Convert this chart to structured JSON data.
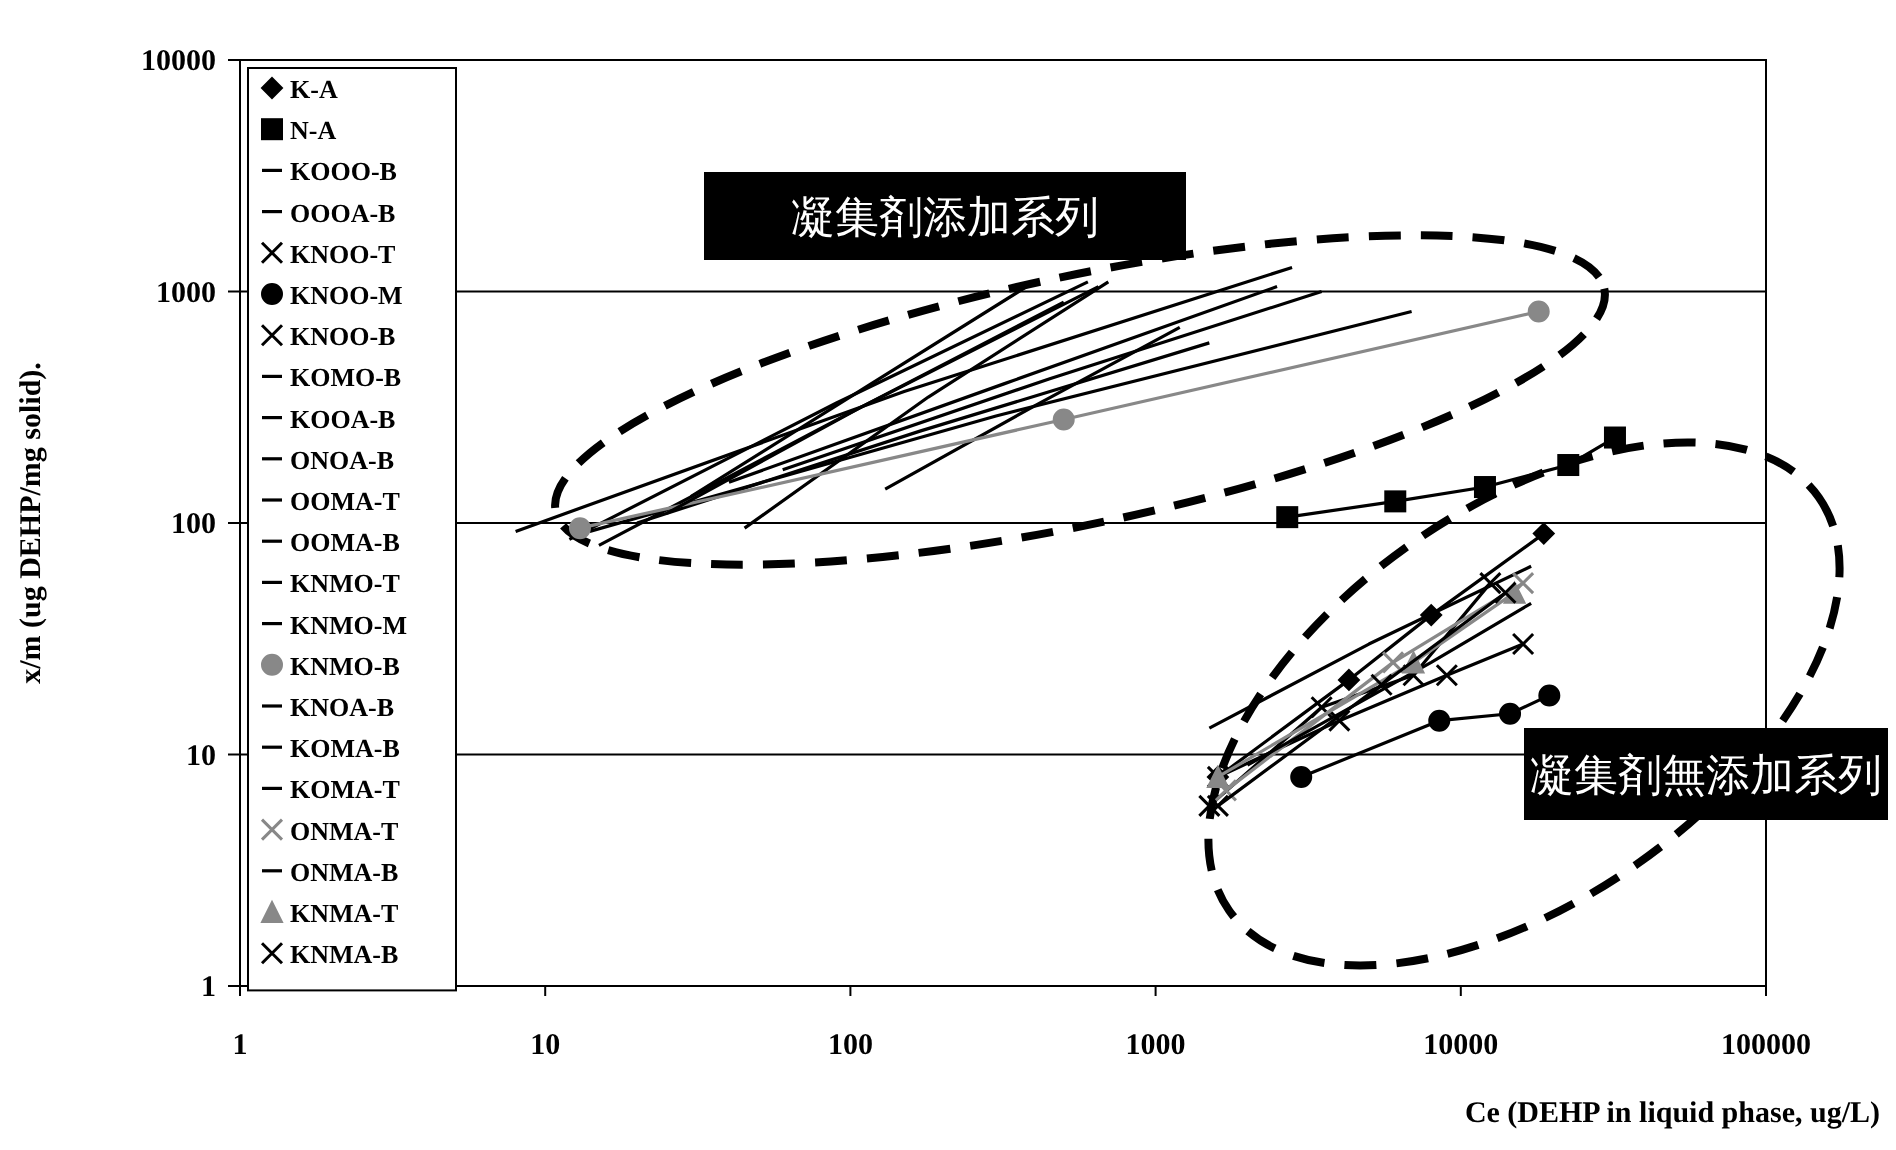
{
  "chart_data": {
    "type": "line",
    "xlabel": "Ce (DEHP in liquid phase, ug/L)",
    "ylabel": "x/m (ug DEHP/mg solid).",
    "log": "xy",
    "xlim": [
      1,
      100000
    ],
    "ylim": [
      1,
      10000
    ],
    "xticks": [
      1,
      10,
      100,
      1000,
      10000,
      100000
    ],
    "yticks": [
      1,
      10,
      100,
      1000,
      10000
    ],
    "grid": "y",
    "legend": "top left",
    "annotations": [
      "凝集剤添加系列",
      "凝集剤無添加系列"
    ],
    "series": [
      {
        "name": "K-A",
        "color": "#000000",
        "marker": "diamond",
        "x": [
          1600,
          4300,
          8000,
          18700
        ],
        "values": [
          8,
          21,
          40,
          90
        ]
      },
      {
        "name": "N-A",
        "color": "#000000",
        "marker": "square",
        "x": [
          2700,
          6100,
          12000,
          22500,
          32000
        ],
        "values": [
          106,
          124,
          143,
          178,
          234
        ]
      },
      {
        "name": "KOOO-B",
        "color": "#000000",
        "marker": "none",
        "x": [
          8,
          150,
          2800
        ],
        "values": [
          92,
          370,
          1270
        ]
      },
      {
        "name": "OOOA-B",
        "color": "#000000",
        "marker": "none",
        "x": [
          14,
          300,
          6900
        ],
        "values": [
          92,
          290,
          820
        ]
      },
      {
        "name": "KNOO-T",
        "color": "#000000",
        "marker": "cross",
        "x": [
          1500,
          3500,
          7000,
          12500
        ],
        "values": [
          6,
          16,
          22,
          55
        ]
      },
      {
        "name": "KNOO-M",
        "color": "#000000",
        "marker": "circle",
        "x": [
          3000,
          8500,
          14500,
          19500
        ],
        "values": [
          8,
          14,
          15,
          18
        ]
      },
      {
        "name": "KNOO-B",
        "color": "#000000",
        "marker": "cross",
        "x": [
          1600,
          4000,
          9000,
          16000
        ],
        "values": [
          8,
          14,
          22,
          30
        ]
      },
      {
        "name": "KOMO-B",
        "color": "#000000",
        "marker": "none",
        "x": [
          12,
          90,
          600
        ],
        "values": [
          85,
          330,
          1100
        ]
      },
      {
        "name": "KOOA-B",
        "color": "#000000",
        "marker": "none",
        "x": [
          15,
          100,
          650
        ],
        "values": [
          80,
          300,
          1050
        ]
      },
      {
        "name": "ONOA-B",
        "color": "#000000",
        "marker": "none",
        "x": [
          45,
          180,
          700
        ],
        "values": [
          95,
          350,
          1100
        ]
      },
      {
        "name": "OOMA-T",
        "color": "#000000",
        "marker": "none",
        "x": [
          130,
          400,
          1200
        ],
        "values": [
          140,
          320,
          700
        ]
      },
      {
        "name": "OOMA-B",
        "color": "#000000",
        "marker": "none",
        "x": [
          40,
          320,
          2500
        ],
        "values": [
          150,
          400,
          1050
        ]
      },
      {
        "name": "KNMO-T",
        "color": "#000000",
        "marker": "none",
        "x": [
          20,
          170,
          1500
        ],
        "values": [
          100,
          250,
          600
        ]
      },
      {
        "name": "KNMO-M",
        "color": "#000000",
        "marker": "none",
        "x": [
          30,
          110,
          400
        ],
        "values": [
          130,
          380,
          1100
        ]
      },
      {
        "name": "KNMO-B",
        "color": "#888888",
        "marker": "circle",
        "x": [
          13,
          500,
          18000
        ],
        "values": [
          95,
          280,
          820
        ]
      },
      {
        "name": "KNOA-B",
        "color": "#000000",
        "marker": "none",
        "x": [
          25,
          110,
          500
        ],
        "values": [
          110,
          320,
          900
        ]
      },
      {
        "name": "KOMA-B",
        "color": "#000000",
        "marker": "none",
        "x": [
          60,
          450,
          3500
        ],
        "values": [
          170,
          420,
          1000
        ]
      },
      {
        "name": "KOMA-T",
        "color": "#000000",
        "marker": "none",
        "x": [
          1500,
          5000,
          17000
        ],
        "values": [
          13,
          30,
          65
        ]
      },
      {
        "name": "ONMA-T",
        "color": "#888888",
        "marker": "cross",
        "x": [
          1700,
          6000,
          16000
        ],
        "values": [
          7,
          25,
          55
        ]
      },
      {
        "name": "ONMA-B",
        "color": "#000000",
        "marker": "none",
        "x": [
          2000,
          8000,
          17000
        ],
        "values": [
          9,
          25,
          45
        ]
      },
      {
        "name": "KNMA-T",
        "color": "#888888",
        "marker": "triangle",
        "x": [
          1600,
          7000,
          15000
        ],
        "values": [
          8,
          25,
          50
        ]
      },
      {
        "name": "KNMA-B",
        "color": "#000000",
        "marker": "cross",
        "x": [
          1600,
          5500,
          14000
        ],
        "values": [
          6,
          20,
          50
        ]
      }
    ]
  }
}
